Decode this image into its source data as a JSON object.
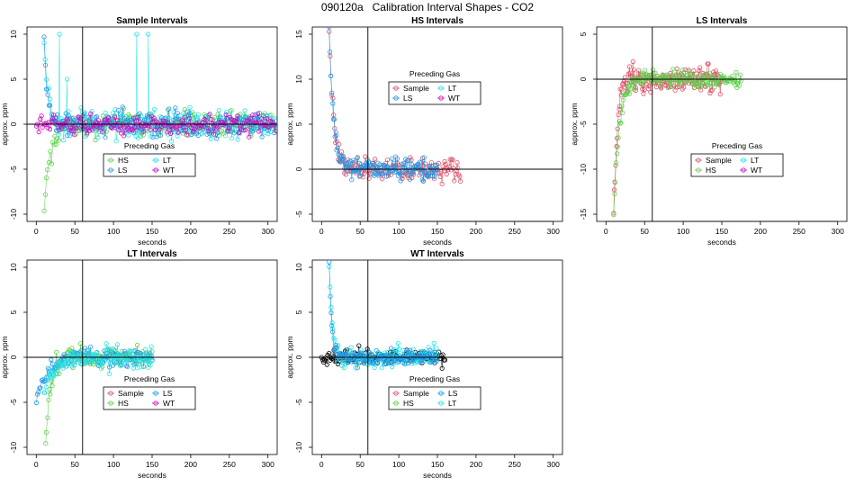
{
  "figure_title": "090120a   Calibration Interval Shapes - CO2",
  "colors": {
    "Sample": "#df536b",
    "HS": "#61d04f",
    "LS": "#2297e6",
    "LT": "#28e2e5",
    "WT": "#cd0bbc",
    "black": "#000000"
  },
  "chart_data": [
    {
      "type": "scatter",
      "title": "Sample Intervals",
      "xlabel": "seconds",
      "ylabel": "approx. ppm",
      "xlim": [
        0,
        300
      ],
      "ylim": [
        -10,
        10
      ],
      "xticks": [
        "0",
        "50",
        "100",
        "150",
        "200",
        "250",
        "300"
      ],
      "yticks": [
        "-10",
        "-5",
        "0",
        "5",
        "10"
      ],
      "vline": 60,
      "hline": 0,
      "legend": {
        "title": "Preceding Gas",
        "items": [
          "HS",
          "LT",
          "LS",
          "WT"
        ],
        "position": "bottom-center"
      },
      "series": [
        {
          "name": "HS",
          "shape": "start-low",
          "x_range": [
            10,
            310
          ],
          "start": -10,
          "tau": 8,
          "noise": 1.0,
          "n": 190
        },
        {
          "name": "LT",
          "shape": "start-high",
          "x_range": [
            10,
            310
          ],
          "start": 10,
          "tau": 5,
          "noise": 1.1,
          "n": 190,
          "spikes": [
            [
              30,
              10
            ],
            [
              130,
              10
            ],
            [
              145,
              10
            ],
            [
              40,
              5
            ]
          ]
        },
        {
          "name": "LS",
          "shape": "start-high",
          "x_range": [
            10,
            310
          ],
          "start": 10,
          "tau": 4,
          "noise": 1.0,
          "n": 190
        },
        {
          "name": "WT",
          "shape": "flat",
          "x_range": [
            0,
            310
          ],
          "start": 2,
          "tau": 6,
          "noise": 0.9,
          "n": 190
        }
      ]
    },
    {
      "type": "scatter",
      "title": "HS Intervals",
      "xlabel": "seconds",
      "ylabel": "approx. ppm",
      "xlim": [
        0,
        300
      ],
      "ylim": [
        -5,
        15
      ],
      "xticks": [
        "0",
        "50",
        "100",
        "150",
        "200",
        "250",
        "300"
      ],
      "yticks": [
        "-5",
        "0",
        "5",
        "10",
        "15"
      ],
      "vline": 60,
      "hline": 0,
      "legend": {
        "title": "Preceding Gas",
        "items": [
          "Sample",
          "LT",
          "LS",
          "WT"
        ],
        "position": "top-center"
      },
      "series": [
        {
          "name": "Sample",
          "shape": "start-high",
          "x_range": [
            10,
            180
          ],
          "start": 15,
          "tau": 6,
          "noise": 0.9,
          "n": 150
        },
        {
          "name": "LS",
          "shape": "start-high",
          "x_range": [
            10,
            150
          ],
          "start": 15,
          "tau": 6,
          "noise": 0.9,
          "n": 130
        }
      ]
    },
    {
      "type": "scatter",
      "title": "LS Intervals",
      "xlabel": "seconds",
      "ylabel": "approx. ppm",
      "xlim": [
        0,
        300
      ],
      "ylim": [
        -15,
        5
      ],
      "xticks": [
        "0",
        "50",
        "100",
        "150",
        "200",
        "250",
        "300"
      ],
      "yticks": [
        "-15",
        "-10",
        "-5",
        "0",
        "5"
      ],
      "vline": 60,
      "hline": 0,
      "legend": {
        "title": "Preceding Gas",
        "items": [
          "Sample",
          "LT",
          "HS",
          "WT"
        ],
        "position": "bottom-center"
      },
      "series": [
        {
          "name": "Sample",
          "shape": "start-low",
          "x_range": [
            10,
            150
          ],
          "start": -15,
          "tau": 5,
          "noise": 1.0,
          "n": 160
        },
        {
          "name": "HS",
          "shape": "start-low",
          "x_range": [
            10,
            175
          ],
          "start": -15,
          "tau": 7,
          "noise": 0.7,
          "n": 160
        }
      ]
    },
    {
      "type": "scatter",
      "title": "LT Intervals",
      "xlabel": "seconds",
      "ylabel": "approx. ppm",
      "xlim": [
        0,
        300
      ],
      "ylim": [
        -10,
        10
      ],
      "xticks": [
        "0",
        "50",
        "100",
        "150",
        "200",
        "250",
        "300"
      ],
      "yticks": [
        "-10",
        "-5",
        "0",
        "5",
        "10"
      ],
      "vline": 60,
      "hline": 0,
      "legend": {
        "title": "Preceding Gas",
        "items": [
          "Sample",
          "LS",
          "HS",
          "WT"
        ],
        "position": "bottom-center"
      },
      "series": [
        {
          "name": "HS",
          "shape": "start-low",
          "x_range": [
            12,
            150
          ],
          "start": -10,
          "tau": 6,
          "noise": 0.8,
          "n": 110
        },
        {
          "name": "LS",
          "shape": "start-low",
          "x_range": [
            0,
            150
          ],
          "start": -5,
          "tau": 12,
          "noise": 0.7,
          "n": 110
        },
        {
          "name": "LT",
          "shape": "start-low",
          "x_range": [
            10,
            150
          ],
          "start": -4,
          "tau": 12,
          "noise": 0.9,
          "n": 110
        }
      ]
    },
    {
      "type": "scatter",
      "title": "WT Intervals",
      "xlabel": "seconds",
      "ylabel": "approx. ppm",
      "xlim": [
        0,
        300
      ],
      "ylim": [
        -10,
        10
      ],
      "xticks": [
        "0",
        "50",
        "100",
        "150",
        "200",
        "250",
        "300"
      ],
      "yticks": [
        "-10",
        "-5",
        "0",
        "5",
        "10"
      ],
      "vline": 60,
      "hline": 0,
      "legend": {
        "title": "Preceding Gas",
        "items": [
          "Sample",
          "LS",
          "HS",
          "LT"
        ],
        "position": "bottom-center"
      },
      "series": [
        {
          "name": "black",
          "shape": "flat",
          "x_range": [
            0,
            160
          ],
          "start": 0,
          "tau": 5,
          "noise": 0.8,
          "n": 120
        },
        {
          "name": "LT",
          "shape": "start-high",
          "x_range": [
            10,
            150
          ],
          "start": 10,
          "tau": 4,
          "noise": 0.8,
          "n": 120
        },
        {
          "name": "LS",
          "shape": "start-high",
          "x_range": [
            10,
            150
          ],
          "start": 10,
          "tau": 3,
          "noise": 0.7,
          "n": 120
        }
      ]
    }
  ]
}
